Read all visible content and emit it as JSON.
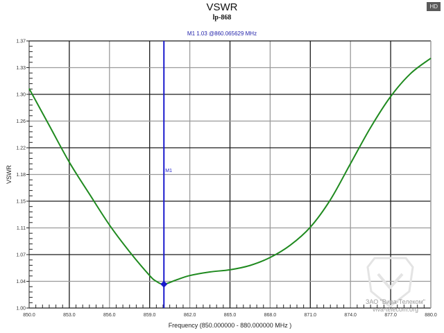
{
  "header": {
    "title": "VSWR",
    "subtitle": "lp-868",
    "marker_readout": "M1   1.03 @860.065629 MHz",
    "badge": "HD"
  },
  "watermark": {
    "line1": "ЗАО \"Вива-Телеком\"",
    "line2": "viva-telecom.org"
  },
  "colors": {
    "trace": "#1f8a1f",
    "marker": "#1a1acc",
    "grid_dark": "#1a1a1a",
    "grid_light": "#9a9a9a"
  },
  "chart_data": {
    "type": "line",
    "title": "VSWR",
    "subtitle": "lp-868",
    "xlabel": "Frequency (850.000000 - 880.000000 MHz )",
    "ylabel": "VSWR",
    "xlim": [
      850,
      880
    ],
    "ylim": [
      1.0,
      1.37
    ],
    "grid": true,
    "x_ticks": [
      "850.0",
      "853.0",
      "856.0",
      "859.0",
      "862.0",
      "865.0",
      "868.0",
      "871.0",
      "874.0",
      "877.0",
      "880.0"
    ],
    "y_ticks": [
      "1.00",
      "1.04",
      "1.07",
      "1.11",
      "1.15",
      "1.18",
      "1.22",
      "1.26",
      "1.30",
      "1.33",
      "1.37"
    ],
    "series": [
      {
        "name": "VSWR",
        "x": [
          850,
          851.5,
          853,
          854.5,
          856,
          857.5,
          859,
          859.5,
          860.07,
          861,
          862,
          863.5,
          865,
          866.5,
          868,
          869.5,
          871,
          872.5,
          874,
          875.5,
          877,
          878.5,
          880
        ],
        "values": [
          1.304,
          1.253,
          1.202,
          1.158,
          1.115,
          1.078,
          1.045,
          1.037,
          1.033,
          1.039,
          1.045,
          1.05,
          1.053,
          1.059,
          1.07,
          1.087,
          1.112,
          1.15,
          1.2,
          1.25,
          1.293,
          1.325,
          1.346
        ]
      }
    ],
    "markers": [
      {
        "label": "M1",
        "x": 860.065629,
        "y": 1.03
      }
    ]
  }
}
